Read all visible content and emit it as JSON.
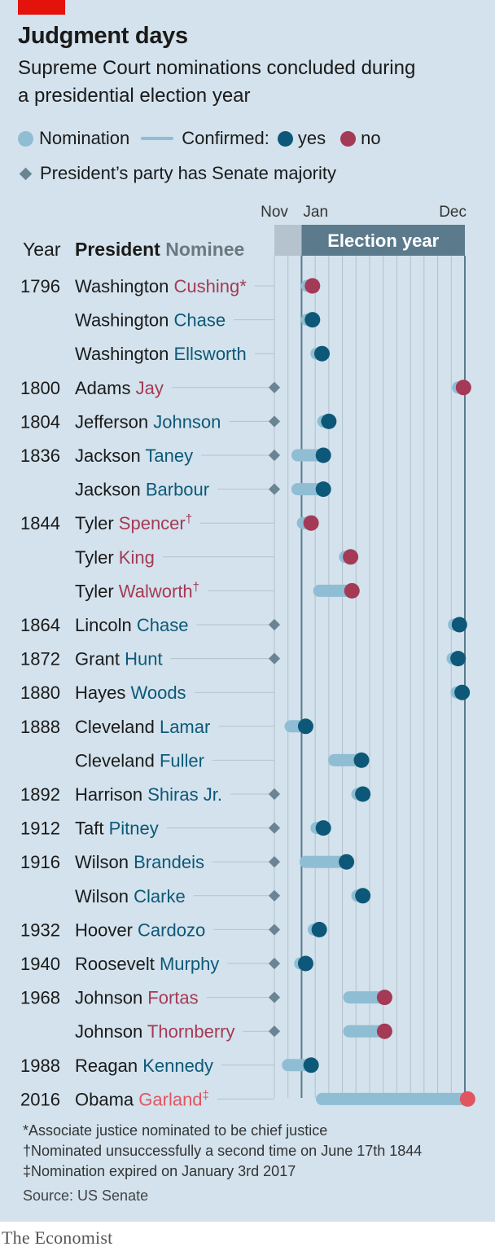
{
  "header": {
    "title": "Judgment days",
    "subtitle_line1": "Supreme Court nominations concluded during",
    "subtitle_line2": "a presidential election year"
  },
  "legend": {
    "nomination": "Nomination",
    "confirmed": "Confirmed:",
    "yes": "yes",
    "no": "no",
    "majority": "President’s party has Senate majority"
  },
  "footnotes": {
    "star": "*Associate justice nominated to be chief justice",
    "dagger": "†Nominated unsuccessfully a second time on June 17th 1844",
    "ddagger": "‡Nomination expired on January 3rd 2017"
  },
  "source": "Source: US Senate",
  "brand": "The Economist",
  "colors": {
    "background": "#d3e2ec",
    "nomination": "#8fbdd4",
    "yes": "#0d5878",
    "no": "#a43a55",
    "garland_no": "#e05560",
    "majority": "#6b8494",
    "election_year_band": "#5b7a8c",
    "pre_year_band": "#b4c3cd",
    "brand_red": "#e3120b"
  },
  "chart_data": {
    "type": "range-dot",
    "axis": {
      "ticks": [
        "Nov",
        "Jan",
        "Dec"
      ],
      "band_label": "Election year",
      "range_months": [
        -2,
        12
      ],
      "note": "months relative to start of election year"
    },
    "column_headers": {
      "year": "Year",
      "president": "President",
      "nominee": "Nominee"
    },
    "rows": [
      {
        "year": "1796",
        "president": "Washington",
        "nominee": "Cushing",
        "mark": "*",
        "confirmed": "no",
        "majority": false,
        "nominated": 0.4,
        "concluded": 0.8
      },
      {
        "year": "",
        "president": "Washington",
        "nominee": "Chase",
        "mark": "",
        "confirmed": "yes",
        "majority": false,
        "nominated": 0.4,
        "concluded": 0.8
      },
      {
        "year": "",
        "president": "Washington",
        "nominee": "Ellsworth",
        "mark": "",
        "confirmed": "yes",
        "majority": false,
        "nominated": 1.1,
        "concluded": 1.5
      },
      {
        "year": "1800",
        "president": "Adams",
        "nominee": "Jay",
        "mark": "",
        "confirmed": "no",
        "majority": true,
        "nominated": 11.5,
        "concluded": 11.9
      },
      {
        "year": "1804",
        "president": "Jefferson",
        "nominee": "Johnson",
        "mark": "",
        "confirmed": "yes",
        "majority": true,
        "nominated": 1.6,
        "concluded": 2.0
      },
      {
        "year": "1836",
        "president": "Jackson",
        "nominee": "Taney",
        "mark": "",
        "confirmed": "yes",
        "majority": true,
        "nominated": -0.3,
        "concluded": 1.6
      },
      {
        "year": "",
        "president": "Jackson",
        "nominee": "Barbour",
        "mark": "",
        "confirmed": "yes",
        "majority": true,
        "nominated": -0.3,
        "concluded": 1.6
      },
      {
        "year": "1844",
        "president": "Tyler",
        "nominee": "Spencer",
        "mark": "†",
        "confirmed": "no",
        "majority": false,
        "nominated": 0.1,
        "concluded": 0.7
      },
      {
        "year": "",
        "president": "Tyler",
        "nominee": "King",
        "mark": "",
        "confirmed": "no",
        "majority": false,
        "nominated": 3.2,
        "concluded": 3.6
      },
      {
        "year": "",
        "president": "Tyler",
        "nominee": "Walworth",
        "mark": "†",
        "confirmed": "no",
        "majority": false,
        "nominated": 1.3,
        "concluded": 3.7
      },
      {
        "year": "1864",
        "president": "Lincoln",
        "nominee": "Chase",
        "mark": "",
        "confirmed": "yes",
        "majority": true,
        "nominated": 11.2,
        "concluded": 11.6
      },
      {
        "year": "1872",
        "president": "Grant",
        "nominee": "Hunt",
        "mark": "",
        "confirmed": "yes",
        "majority": true,
        "nominated": 11.1,
        "concluded": 11.5
      },
      {
        "year": "1880",
        "president": "Hayes",
        "nominee": "Woods",
        "mark": "",
        "confirmed": "yes",
        "majority": false,
        "nominated": 11.4,
        "concluded": 11.8
      },
      {
        "year": "1888",
        "president": "Cleveland",
        "nominee": "Lamar",
        "mark": "",
        "confirmed": "yes",
        "majority": false,
        "nominated": -0.8,
        "concluded": 0.3
      },
      {
        "year": "",
        "president": "Cleveland",
        "nominee": "Fuller",
        "mark": "",
        "confirmed": "yes",
        "majority": false,
        "nominated": 2.4,
        "concluded": 4.4
      },
      {
        "year": "1892",
        "president": "Harrison",
        "nominee": "Shiras Jr.",
        "mark": "",
        "confirmed": "yes",
        "majority": true,
        "nominated": 4.1,
        "concluded": 4.5
      },
      {
        "year": "1912",
        "president": "Taft",
        "nominee": "Pitney",
        "mark": "",
        "confirmed": "yes",
        "majority": true,
        "nominated": 1.1,
        "concluded": 1.6
      },
      {
        "year": "1916",
        "president": "Wilson",
        "nominee": "Brandeis",
        "mark": "",
        "confirmed": "yes",
        "majority": true,
        "nominated": 0.3,
        "concluded": 3.3
      },
      {
        "year": "",
        "president": "Wilson",
        "nominee": "Clarke",
        "mark": "",
        "confirmed": "yes",
        "majority": true,
        "nominated": 4.1,
        "concluded": 4.5
      },
      {
        "year": "1932",
        "president": "Hoover",
        "nominee": "Cardozo",
        "mark": "",
        "confirmed": "yes",
        "majority": true,
        "nominated": 0.9,
        "concluded": 1.3
      },
      {
        "year": "1940",
        "president": "Roosevelt",
        "nominee": "Murphy",
        "mark": "",
        "confirmed": "yes",
        "majority": true,
        "nominated": -0.1,
        "concluded": 0.3
      },
      {
        "year": "1968",
        "president": "Johnson",
        "nominee": "Fortas",
        "mark": "",
        "confirmed": "no",
        "majority": true,
        "nominated": 3.5,
        "concluded": 6.1
      },
      {
        "year": "",
        "president": "Johnson",
        "nominee": "Thornberry",
        "mark": "",
        "confirmed": "no",
        "majority": true,
        "nominated": 3.5,
        "concluded": 6.1
      },
      {
        "year": "1988",
        "president": "Reagan",
        "nominee": "Kennedy",
        "mark": "",
        "confirmed": "yes",
        "majority": false,
        "nominated": -1.0,
        "concluded": 0.7
      },
      {
        "year": "2016",
        "president": "Obama",
        "nominee": "Garland",
        "mark": "‡",
        "confirmed": "no",
        "majority": false,
        "nominated": 1.5,
        "concluded": 12.2
      }
    ]
  }
}
